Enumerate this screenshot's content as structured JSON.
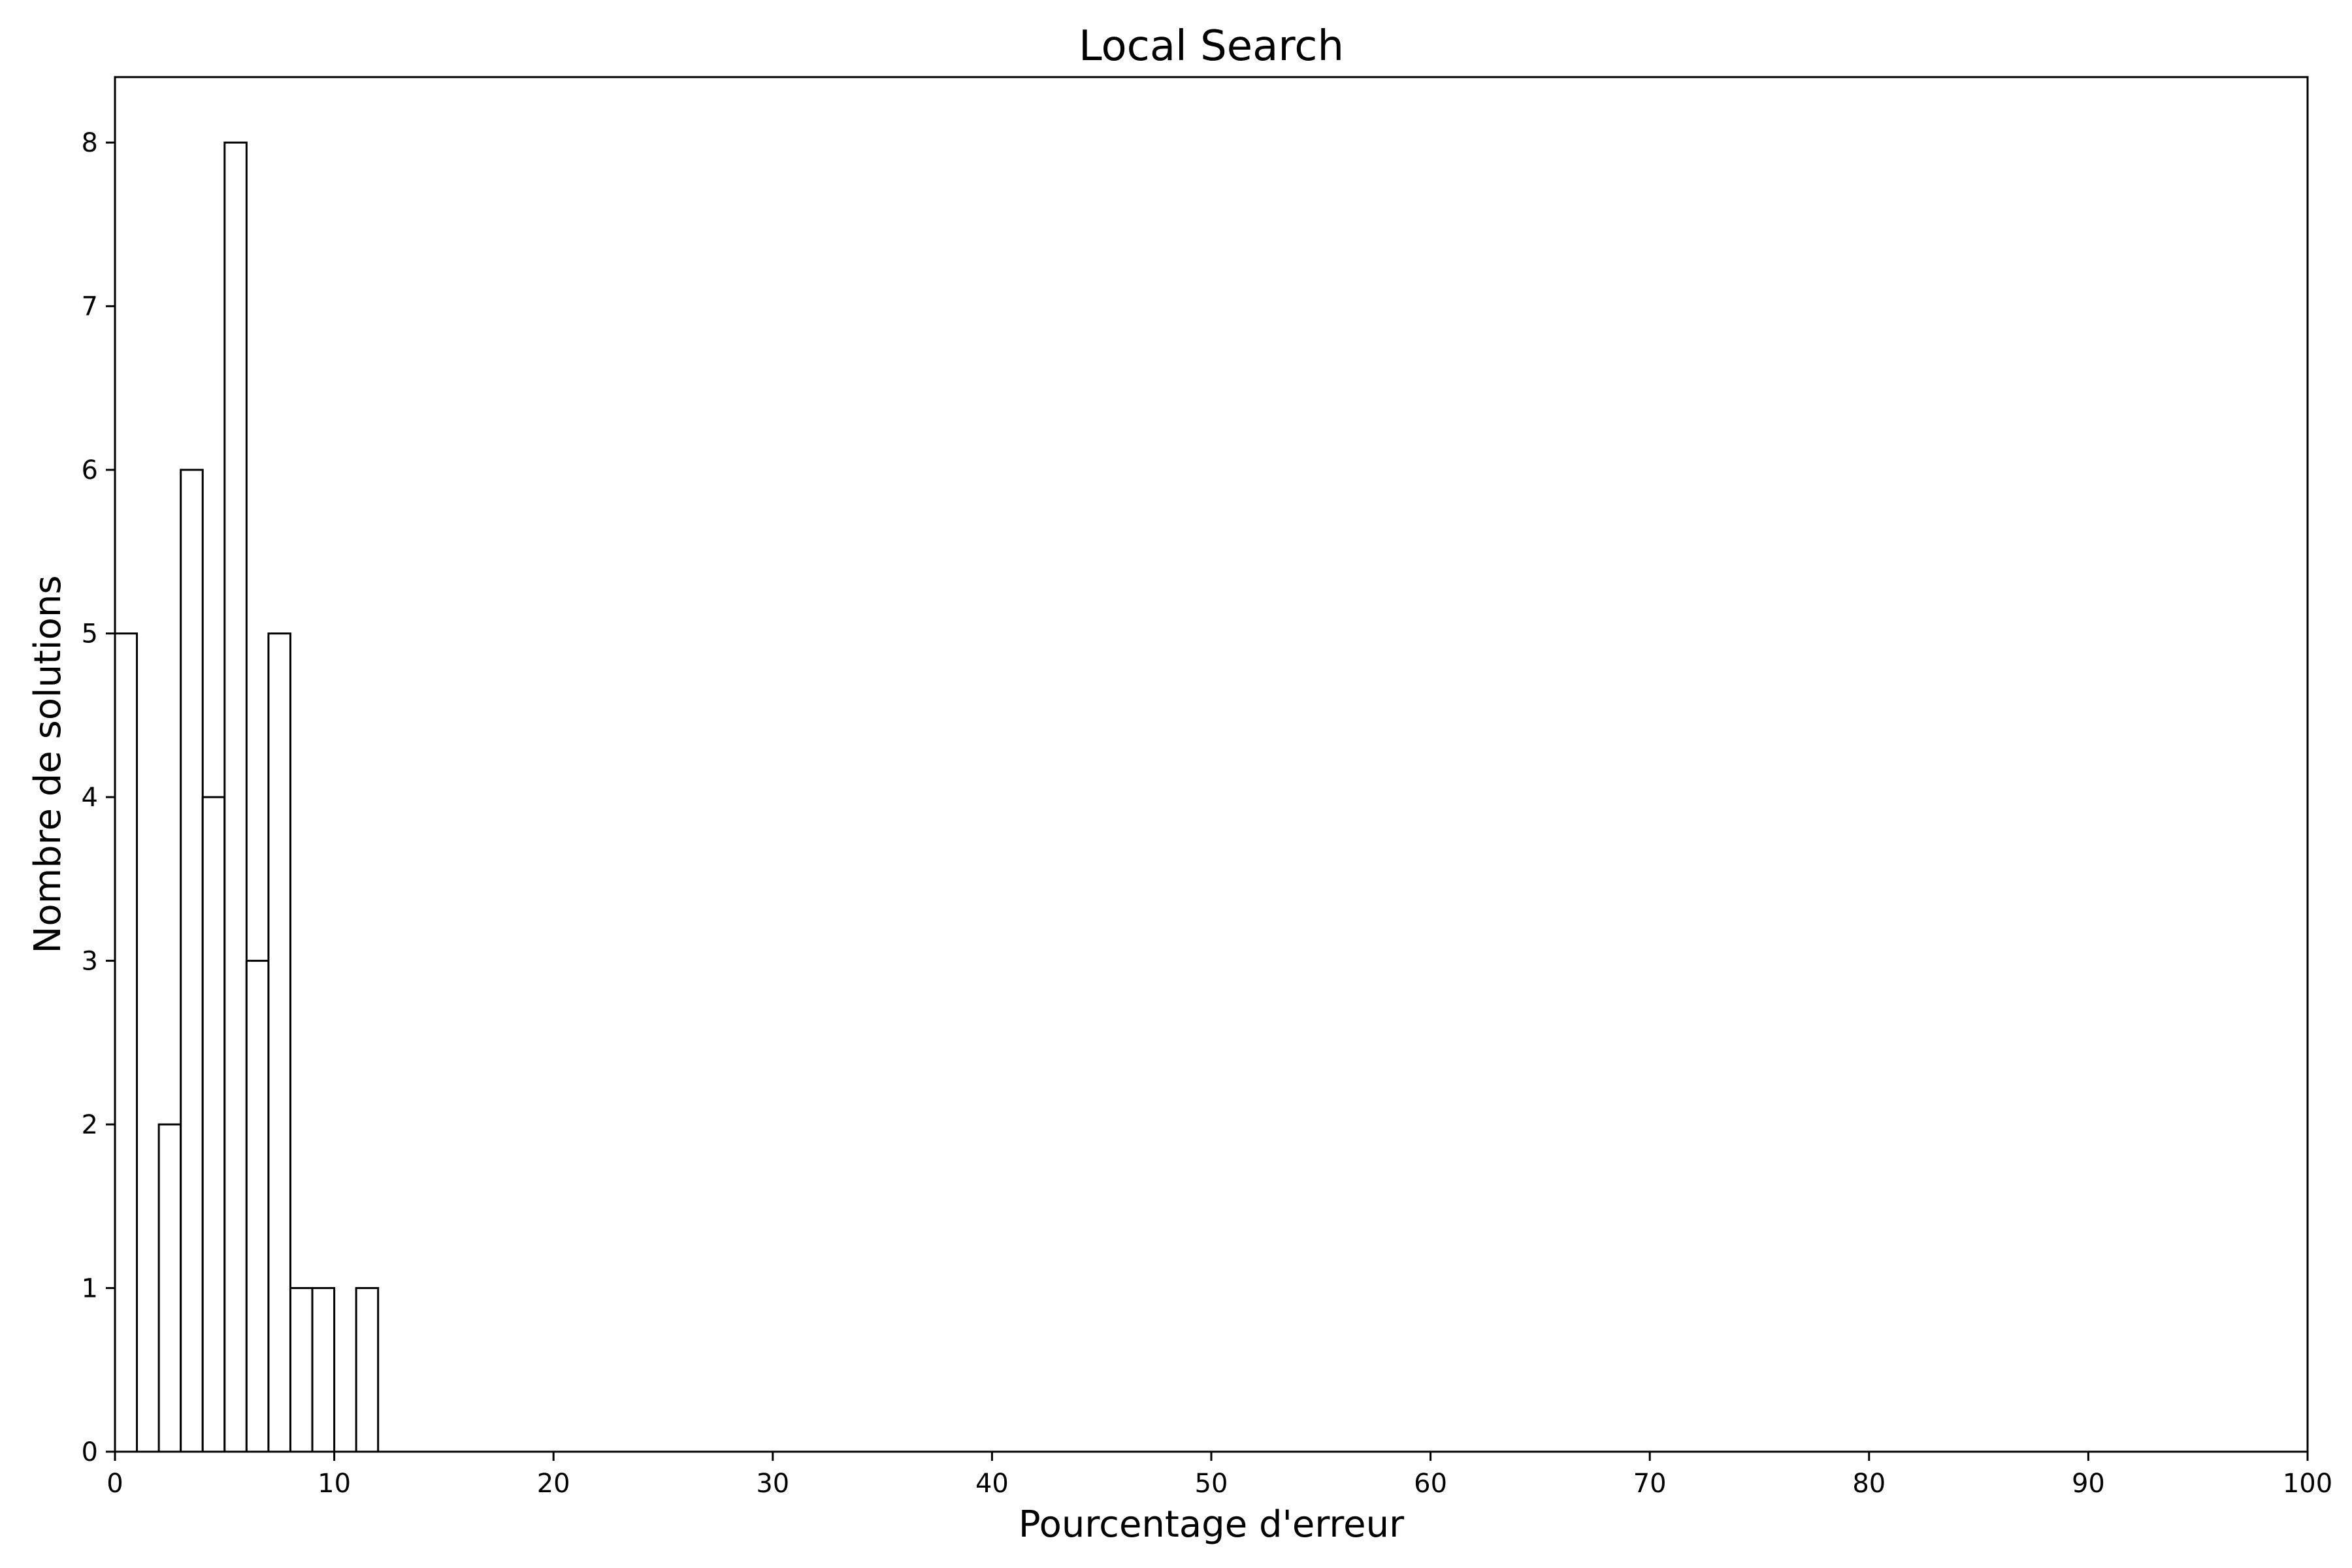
{
  "chart_data": {
    "type": "bar",
    "title": "Local Search",
    "xlabel": "Pourcentage d'erreur",
    "ylabel": "Nombre de solutions",
    "xlim": [
      0,
      100
    ],
    "ylim": [
      0,
      8.4
    ],
    "x_ticks": [
      "0",
      "10",
      "20",
      "30",
      "40",
      "50",
      "60",
      "70",
      "80",
      "90",
      "100"
    ],
    "y_ticks": [
      "0",
      "1",
      "2",
      "3",
      "4",
      "5",
      "6",
      "7",
      "8"
    ],
    "histogram": true,
    "bin_width": 1,
    "bins": [
      {
        "x": 0,
        "value": 5
      },
      {
        "x": 1,
        "value": 0
      },
      {
        "x": 2,
        "value": 2
      },
      {
        "x": 3,
        "value": 6
      },
      {
        "x": 4,
        "value": 4
      },
      {
        "x": 5,
        "value": 8
      },
      {
        "x": 6,
        "value": 3
      },
      {
        "x": 7,
        "value": 5
      },
      {
        "x": 8,
        "value": 1
      },
      {
        "x": 9,
        "value": 1
      },
      {
        "x": 10,
        "value": 0
      },
      {
        "x": 11,
        "value": 1
      }
    ],
    "bar_fill": "#ffffff",
    "bar_edge": "#000000",
    "grid": false,
    "legend": "none"
  }
}
